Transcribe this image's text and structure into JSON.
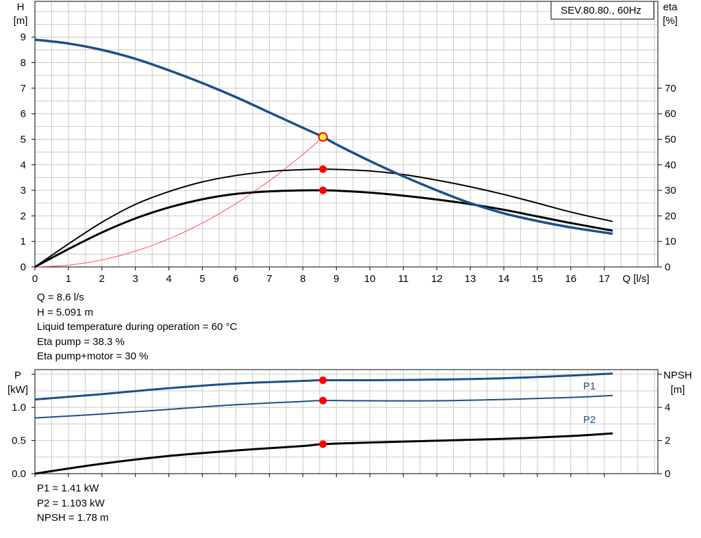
{
  "colors": {
    "grid": "#c8c8c8",
    "head_curve": "#1c4f8a",
    "power_curve": "#1c4f8a",
    "eta_curve": "#000000",
    "system_curve": "#ff5050",
    "duty_point": "#ff0000",
    "duty_point_fill": "#ffee44"
  },
  "readout_top": [
    "Q = 8.6 l/s",
    "H = 5.091 m",
    "Liquid temperature during operation = 60 °C",
    "Eta pump = 38.3 %",
    "Eta pump+motor = 30 %"
  ],
  "readout_bottom": [
    "P1 = 1.41 kW",
    "P2 = 1.103 kW",
    "NPSH = 1.78 m"
  ],
  "chart_data": [
    {
      "type": "line",
      "title": "SEV.80.80., 60Hz",
      "y_label": [
        "H",
        "[m]"
      ],
      "y2_label": [
        "eta",
        "[%]"
      ],
      "x_label": "Q [l/s]",
      "xlim": [
        0,
        18.6
      ],
      "ylim": [
        0,
        10.4
      ],
      "y2lim": [
        0,
        104
      ],
      "x_ticks": [
        0,
        1,
        2,
        3,
        4,
        5,
        6,
        7,
        8,
        9,
        10,
        11,
        12,
        13,
        14,
        15,
        16,
        17
      ],
      "y_ticks": [
        0,
        1,
        2,
        3,
        4,
        5,
        6,
        7,
        8,
        9
      ],
      "y2_ticks": [
        0,
        10,
        20,
        30,
        40,
        50,
        60,
        70
      ],
      "grid": true,
      "series": [
        {
          "key": "head",
          "axis": "y",
          "x": [
            0,
            1,
            2,
            3,
            4,
            5,
            6,
            7,
            8,
            8.6,
            9,
            10,
            11,
            12,
            13,
            14,
            15,
            16,
            17.25
          ],
          "y": [
            8.9,
            8.75,
            8.5,
            8.15,
            7.7,
            7.2,
            6.65,
            6.05,
            5.45,
            5.091,
            4.8,
            4.15,
            3.55,
            3.0,
            2.5,
            2.1,
            1.8,
            1.55,
            1.3
          ]
        },
        {
          "key": "eta_pump",
          "axis": "y2",
          "x": [
            0,
            1,
            2,
            3,
            4,
            5,
            6,
            7,
            8,
            8.6,
            9,
            10,
            11,
            12,
            13,
            14,
            15,
            16,
            17.25
          ],
          "y": [
            0,
            9,
            17.5,
            24.5,
            29.5,
            33.3,
            35.8,
            37.4,
            38.1,
            38.3,
            38.2,
            37.6,
            36.2,
            34,
            31.4,
            28.4,
            25,
            21.5,
            17.8
          ]
        },
        {
          "key": "eta_pump_motor",
          "axis": "y2",
          "x": [
            0,
            1,
            2,
            3,
            4,
            5,
            6,
            7,
            8,
            8.6,
            9,
            10,
            11,
            12,
            13,
            14,
            15,
            16,
            17.25
          ],
          "y": [
            0,
            7,
            13.5,
            19,
            23.3,
            26.5,
            28.6,
            29.6,
            30,
            30,
            29.9,
            29.1,
            27.9,
            26.4,
            24.6,
            22.4,
            19.8,
            17.2,
            14.2
          ]
        },
        {
          "key": "system",
          "axis": "y",
          "x": [
            0,
            1,
            2,
            3,
            4,
            5,
            6,
            7,
            8,
            8.6
          ],
          "y": [
            0,
            0.069,
            0.275,
            0.619,
            1.101,
            1.721,
            2.478,
            3.373,
            4.405,
            5.091
          ]
        }
      ],
      "duty_point": {
        "x": 8.6,
        "h": 5.091,
        "eta_pump": 38.3,
        "eta_pump_motor": 30
      }
    },
    {
      "type": "line",
      "y_label": [
        "P",
        "[kW]"
      ],
      "y2_label": [
        "NPSH",
        "[m]"
      ],
      "xlim": [
        0,
        18.6
      ],
      "ylim": [
        0,
        1.57
      ],
      "y2lim": [
        0,
        6.28
      ],
      "y_ticks": [
        "0.0",
        "0.5",
        "1.0"
      ],
      "y2_ticks": [
        0,
        2,
        4
      ],
      "grid": true,
      "series": [
        {
          "key": "P1",
          "name": "P1",
          "axis": "y",
          "x": [
            0,
            2,
            4,
            6,
            8,
            8.6,
            10,
            12,
            14,
            16,
            17.25
          ],
          "y": [
            1.12,
            1.2,
            1.29,
            1.36,
            1.4,
            1.41,
            1.41,
            1.42,
            1.44,
            1.48,
            1.51
          ]
        },
        {
          "key": "P2",
          "name": "P2",
          "axis": "y",
          "x": [
            0,
            2,
            4,
            6,
            8,
            8.6,
            10,
            12,
            14,
            16,
            17.25
          ],
          "y": [
            0.84,
            0.9,
            0.97,
            1.04,
            1.09,
            1.103,
            1.1,
            1.1,
            1.12,
            1.15,
            1.18
          ]
        },
        {
          "key": "NPSH",
          "axis": "y2",
          "x": [
            0,
            2,
            4,
            6,
            8,
            8.6,
            10,
            12,
            14,
            16,
            17.25
          ],
          "y": [
            0,
            0.6,
            1.07,
            1.4,
            1.67,
            1.78,
            1.88,
            1.99,
            2.1,
            2.27,
            2.43
          ]
        }
      ],
      "duty_point": {
        "x": 8.6,
        "p1": 1.41,
        "p2": 1.103,
        "npsh": 1.78
      }
    }
  ]
}
